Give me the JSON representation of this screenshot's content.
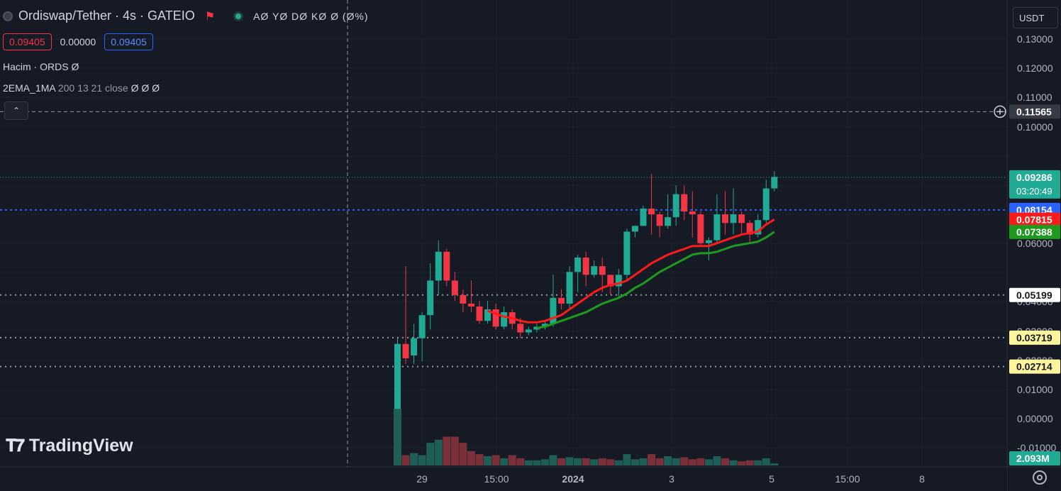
{
  "header": {
    "title": "Ordiswap/Tether · 4s · GATEIO",
    "ohlc": "AØ YØ DØ KØ Ø (Ø%)",
    "bid": "0.09405",
    "spread": "0.00000",
    "ask": "0.09405",
    "volume_indicator": "Hacim · ORDS  Ø",
    "ema_name": "2EMA_1MA",
    "ema_params": "200 13 21 close",
    "ema_values": "Ø Ø Ø"
  },
  "currency": "USDT",
  "watermark": "TradingView",
  "colors": {
    "up": "#22ab94",
    "down": "#f23645",
    "ema_red": "#ff1a1a",
    "ema_green": "#1e9b1e"
  },
  "chart_data": {
    "type": "candlestick",
    "y_ticks": [
      "0.13000",
      "0.12000",
      "0.11000",
      "0.10000",
      "0.06000",
      "0.04000",
      "0.03000",
      "0.02000",
      "0.01000",
      "0.00000",
      "-0.01000"
    ],
    "x_ticks": [
      "29",
      "15:00",
      "2024",
      "3",
      "5",
      "15:00",
      "8"
    ],
    "price_labels": [
      {
        "text": "0.11565",
        "style": "crosshair"
      },
      {
        "text": "0.09286",
        "sub": "03:20:49",
        "style": "current"
      },
      {
        "text": "0.08154",
        "style": "blue"
      },
      {
        "text": "0.07815",
        "style": "red"
      },
      {
        "text": "0.07388",
        "style": "green"
      },
      {
        "text": "0.05199",
        "style": "white"
      },
      {
        "text": "0.03719",
        "style": "yellow"
      },
      {
        "text": "0.02714",
        "style": "yellow"
      },
      {
        "text": "2.093M",
        "style": "volume"
      }
    ],
    "levels": {
      "crosshair": 0.11565,
      "current": 0.09286,
      "blue": 0.08154,
      "l1": 0.05199,
      "l2": 0.03719,
      "l3": 0.02714
    },
    "candles": [
      [
        0.0,
        0.035,
        -0.002,
        0.037
      ],
      [
        0.035,
        0.03,
        0.028,
        0.062
      ],
      [
        0.031,
        0.037,
        0.028,
        0.042
      ],
      [
        0.037,
        0.045,
        0.029,
        0.046
      ],
      [
        0.045,
        0.057,
        0.04,
        0.063
      ],
      [
        0.057,
        0.067,
        0.052,
        0.071
      ],
      [
        0.067,
        0.057,
        0.055,
        0.068
      ],
      [
        0.057,
        0.052,
        0.05,
        0.06
      ],
      [
        0.052,
        0.049,
        0.046,
        0.054
      ],
      [
        0.049,
        0.048,
        0.046,
        0.057
      ],
      [
        0.048,
        0.043,
        0.042,
        0.05
      ],
      [
        0.043,
        0.047,
        0.042,
        0.05
      ],
      [
        0.047,
        0.041,
        0.04,
        0.049
      ],
      [
        0.041,
        0.046,
        0.04,
        0.048
      ],
      [
        0.046,
        0.042,
        0.04,
        0.047
      ],
      [
        0.042,
        0.039,
        0.037,
        0.044
      ],
      [
        0.039,
        0.04,
        0.038,
        0.041
      ],
      [
        0.04,
        0.041,
        0.039,
        0.042
      ],
      [
        0.041,
        0.042,
        0.04,
        0.043
      ],
      [
        0.042,
        0.051,
        0.041,
        0.059
      ],
      [
        0.051,
        0.049,
        0.047,
        0.054
      ],
      [
        0.049,
        0.06,
        0.047,
        0.062
      ],
      [
        0.06,
        0.065,
        0.053,
        0.066
      ],
      [
        0.065,
        0.059,
        0.055,
        0.067
      ],
      [
        0.059,
        0.062,
        0.058,
        0.064
      ],
      [
        0.062,
        0.059,
        0.053,
        0.065
      ],
      [
        0.059,
        0.055,
        0.052,
        0.059
      ],
      [
        0.055,
        0.059,
        0.051,
        0.061
      ],
      [
        0.059,
        0.074,
        0.057,
        0.075
      ],
      [
        0.074,
        0.076,
        0.072,
        0.076
      ],
      [
        0.076,
        0.082,
        0.076,
        0.083
      ],
      [
        0.082,
        0.08,
        0.073,
        0.094
      ],
      [
        0.08,
        0.076,
        0.072,
        0.081
      ],
      [
        0.076,
        0.079,
        0.075,
        0.087
      ],
      [
        0.079,
        0.087,
        0.076,
        0.09
      ],
      [
        0.087,
        0.081,
        0.078,
        0.09
      ],
      [
        0.081,
        0.08,
        0.072,
        0.088
      ],
      [
        0.08,
        0.07,
        0.069,
        0.081
      ],
      [
        0.07,
        0.071,
        0.064,
        0.072
      ],
      [
        0.071,
        0.08,
        0.07,
        0.087
      ],
      [
        0.08,
        0.077,
        0.073,
        0.088
      ],
      [
        0.077,
        0.08,
        0.073,
        0.089
      ],
      [
        0.08,
        0.077,
        0.073,
        0.081
      ],
      [
        0.077,
        0.073,
        0.07,
        0.078
      ],
      [
        0.073,
        0.078,
        0.072,
        0.08
      ],
      [
        0.078,
        0.089,
        0.077,
        0.092
      ],
      [
        0.089,
        0.093,
        0.088,
        0.095
      ]
    ],
    "volumes": [
      0.55,
      0.1,
      0.12,
      0.1,
      0.22,
      0.25,
      0.28,
      0.28,
      0.22,
      0.14,
      0.11,
      0.09,
      0.1,
      0.07,
      0.1,
      0.07,
      0.05,
      0.05,
      0.06,
      0.1,
      0.07,
      0.08,
      0.07,
      0.07,
      0.06,
      0.07,
      0.06,
      0.05,
      0.11,
      0.06,
      0.07,
      0.11,
      0.07,
      0.09,
      0.07,
      0.08,
      0.06,
      0.07,
      0.06,
      0.09,
      0.07,
      0.05,
      0.04,
      0.05,
      0.05,
      0.07,
      0.02
    ],
    "ema13": [
      null,
      null,
      null,
      null,
      null,
      null,
      null,
      null,
      null,
      null,
      null,
      0.0465,
      0.0455,
      0.0445,
      0.044,
      0.043,
      0.0425,
      0.0425,
      0.043,
      0.044,
      0.045,
      0.047,
      0.049,
      0.051,
      0.053,
      0.0545,
      0.0555,
      0.056,
      0.057,
      0.059,
      0.061,
      0.063,
      0.0645,
      0.066,
      0.067,
      0.068,
      0.069,
      0.069,
      0.069,
      0.07,
      0.071,
      0.072,
      0.073,
      0.0735,
      0.074,
      0.0765,
      0.0782
    ],
    "ema21": [
      null,
      null,
      null,
      null,
      null,
      null,
      null,
      null,
      null,
      null,
      null,
      null,
      null,
      null,
      null,
      null,
      null,
      0.0405,
      0.041,
      0.042,
      0.043,
      0.044,
      0.045,
      0.046,
      0.0475,
      0.049,
      0.05,
      0.051,
      0.0525,
      0.0545,
      0.056,
      0.058,
      0.06,
      0.0615,
      0.063,
      0.0645,
      0.066,
      0.0665,
      0.0665,
      0.067,
      0.068,
      0.069,
      0.0695,
      0.07,
      0.0705,
      0.072,
      0.0739
    ]
  }
}
